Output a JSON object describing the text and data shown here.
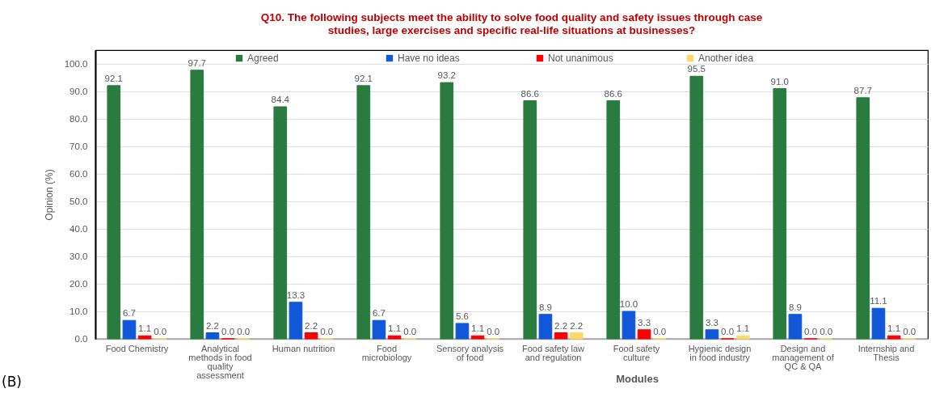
{
  "chart_data": {
    "type": "bar",
    "title": "Q10. The following subjects meet the ability to solve food quality and safety issues through case studies, large exercises and specific real-life situations at businesses?",
    "xlabel": "Modules",
    "ylabel": "Opinion (%)",
    "categories": [
      "Food Chemistry",
      "Analytical methods in food quality assessment",
      "Human nutrition",
      "Food microbiology",
      "Sensory analysis of food",
      "Food safety law and regulation",
      "Food safety culture",
      "Hygienic design in food industry",
      "Design and management of QC & QA",
      "Internship and Thesis"
    ],
    "series": [
      {
        "name": "Agreed",
        "color": "#2a7b3f",
        "values": [
          92.1,
          97.7,
          84.4,
          92.1,
          93.2,
          86.6,
          86.6,
          95.5,
          91.0,
          87.7
        ],
        "value_labels": [
          "92.1",
          "97.7",
          "84.4",
          "92.1",
          "93.2",
          "86.6",
          "86.6",
          "95.5",
          "91.0",
          "87.7"
        ]
      },
      {
        "name": "Have no ideas",
        "color": "#1158d8",
        "values": [
          6.7,
          2.2,
          13.3,
          6.7,
          5.6,
          8.9,
          10.0,
          3.3,
          8.9,
          11.1
        ],
        "value_labels": [
          "6.7",
          "2.2",
          "13.3",
          "6.7",
          "5.6",
          "8.9",
          "10.0",
          "3.3",
          "8.9",
          "11.1"
        ]
      },
      {
        "name": "Not unanimous",
        "color": "#fe0000",
        "values": [
          1.1,
          0.0,
          2.2,
          1.1,
          1.1,
          2.2,
          3.3,
          0.0,
          0.0,
          1.1
        ],
        "value_labels": [
          "1.1",
          "0.0",
          "2.2",
          "1.1",
          "1.1",
          "2.2",
          "3.3",
          "0.0",
          "0.0",
          "1.1"
        ]
      },
      {
        "name": "Another idea",
        "color": "#ffd966",
        "values": [
          0.0,
          0.0,
          0.0,
          0.0,
          0.0,
          2.2,
          0.0,
          1.1,
          0.0,
          0.0
        ],
        "value_labels": [
          "0.0",
          "0.0",
          "0.0",
          "0.0",
          "0.0",
          "2.2",
          "0.0",
          "1.1",
          "0.0",
          "0.0"
        ]
      }
    ],
    "ylim": [
      0,
      105
    ],
    "yticks": [
      {
        "value": 0,
        "label": "0.0"
      },
      {
        "value": 10,
        "label": "10.0"
      },
      {
        "value": 20,
        "label": "20.0"
      },
      {
        "value": 30,
        "label": "30.0"
      },
      {
        "value": 40,
        "label": "40.0"
      },
      {
        "value": 50,
        "label": "50.0"
      },
      {
        "value": 60,
        "label": "60.0"
      },
      {
        "value": 70,
        "label": "70.0"
      },
      {
        "value": 80,
        "label": "80.0"
      },
      {
        "value": 90,
        "label": "90.0"
      },
      {
        "value": 100,
        "label": "100.0"
      }
    ],
    "grid": "y",
    "legend": "top",
    "annotations": [
      "(B)"
    ]
  }
}
